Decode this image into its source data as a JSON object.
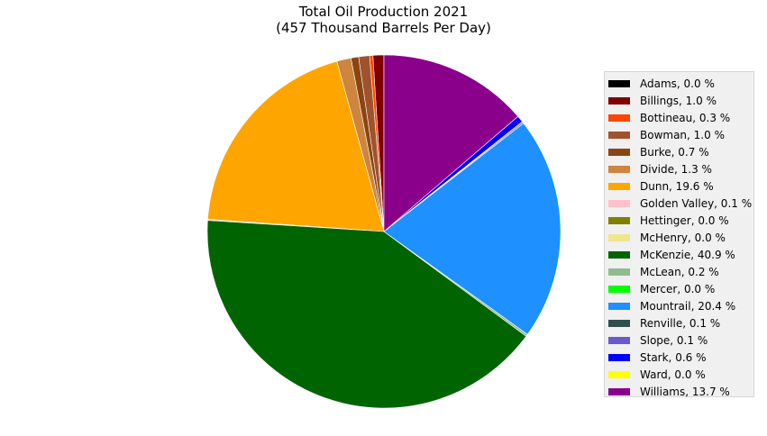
{
  "chart_data": {
    "type": "pie",
    "title": "Total Oil Production 2021",
    "subtitle": "(457 Thousand Barrels Per Day)",
    "legend_position": "right",
    "start_angle_deg": 90,
    "direction": "counterclockwise",
    "slices": [
      {
        "label": "Adams, 0.0 %",
        "value": 0.0,
        "color": "#000000"
      },
      {
        "label": "Billings, 1.0 %",
        "value": 1.0,
        "color": "#800000"
      },
      {
        "label": "Bottineau, 0.3 %",
        "value": 0.3,
        "color": "#ff4500"
      },
      {
        "label": "Bowman, 1.0 %",
        "value": 1.0,
        "color": "#a0522d"
      },
      {
        "label": "Burke, 0.7 %",
        "value": 0.7,
        "color": "#8b4513"
      },
      {
        "label": "Divide, 1.3 %",
        "value": 1.3,
        "color": "#cd853f"
      },
      {
        "label": "Dunn, 19.6 %",
        "value": 19.6,
        "color": "#ffa500"
      },
      {
        "label": "Golden Valley, 0.1 %",
        "value": 0.1,
        "color": "#ffc0cb"
      },
      {
        "label": "Hettinger, 0.0 %",
        "value": 0.0,
        "color": "#808000"
      },
      {
        "label": "McHenry, 0.0 %",
        "value": 0.0,
        "color": "#f0e68c"
      },
      {
        "label": "McKenzie, 40.9 %",
        "value": 40.9,
        "color": "#006400"
      },
      {
        "label": "McLean, 0.2 %",
        "value": 0.2,
        "color": "#8fbc8f"
      },
      {
        "label": "Mercer, 0.0 %",
        "value": 0.0,
        "color": "#00ff00"
      },
      {
        "label": "Mountrail, 20.4 %",
        "value": 20.4,
        "color": "#1e90ff"
      },
      {
        "label": "Renville, 0.1 %",
        "value": 0.1,
        "color": "#2f4f4f"
      },
      {
        "label": "Slope, 0.1 %",
        "value": 0.1,
        "color": "#6a5acd"
      },
      {
        "label": "Stark, 0.6 %",
        "value": 0.6,
        "color": "#0000ff"
      },
      {
        "label": "Ward, 0.0 %",
        "value": 0.0,
        "color": "#ffff00"
      },
      {
        "label": "Williams, 13.7 %",
        "value": 13.7,
        "color": "#8b008b"
      }
    ]
  }
}
